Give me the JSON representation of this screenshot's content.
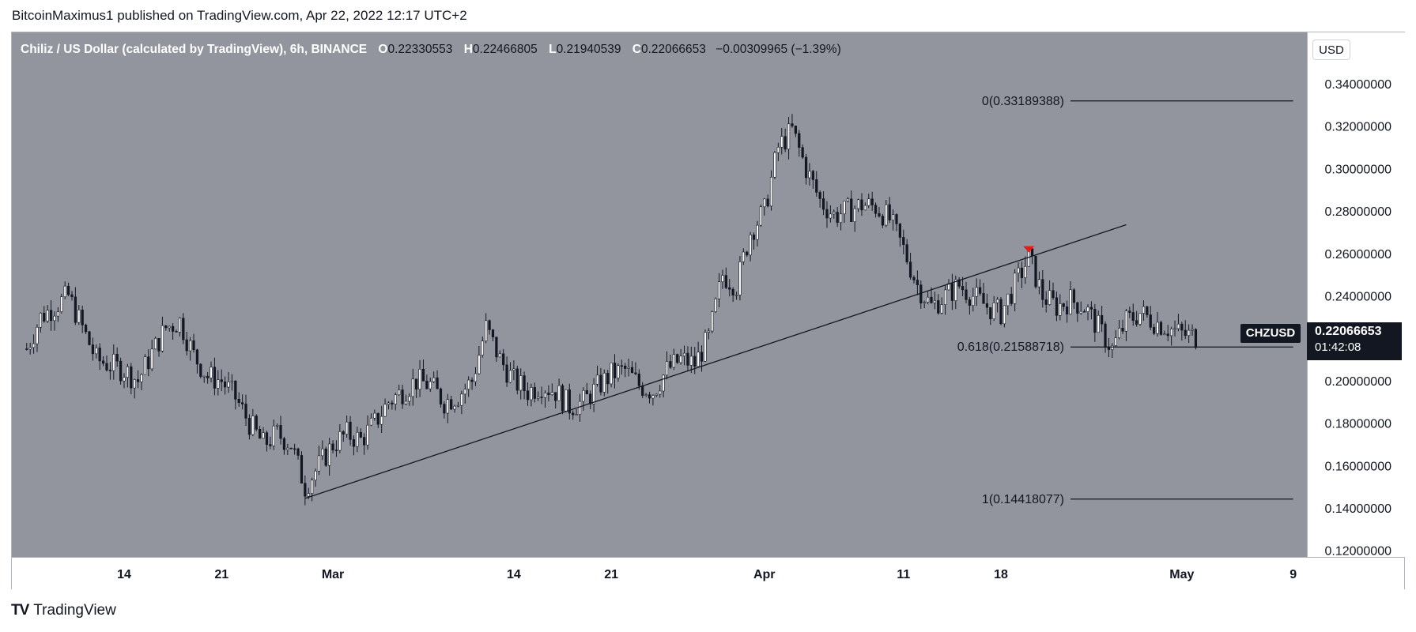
{
  "header": {
    "publisher": "BitcoinMaximus1 published on TradingView.com, Apr 22, 2022 12:17 UTC+2"
  },
  "legend": {
    "symbol": "Chiliz / US Dollar (calculated by TradingView), 6h, BINANCE",
    "o_label": "O",
    "o": "0.22330553",
    "h_label": "H",
    "h": "0.22466805",
    "l_label": "L",
    "l": "0.21940539",
    "c_label": "C",
    "c": "0.22066653",
    "change": "−0.00309965 (−1.39%)"
  },
  "axis": {
    "currency_button": "USD"
  },
  "ticker": {
    "symbol": "CHZUSD",
    "last_price": "0.22066653",
    "countdown": "01:42:08"
  },
  "footer": {
    "logo_mark": "TV",
    "brand": "TradingView"
  },
  "colors": {
    "plot_bg": "#93959e",
    "candle": "#131722",
    "trendline": "#131722",
    "marker": "#e31c1c"
  },
  "chart_data": {
    "type": "candlestick",
    "title": "Chiliz / US Dollar (calculated by TradingView), 6h, BINANCE",
    "ylim": [
      0.12,
      0.35
    ],
    "y_ticks": [
      "0.34000000",
      "0.32000000",
      "0.30000000",
      "0.28000000",
      "0.26000000",
      "0.24000000",
      "0.22000000",
      "0.20000000",
      "0.18000000",
      "0.16000000",
      "0.14000000",
      "0.12000000"
    ],
    "y_tick_values": [
      0.34,
      0.32,
      0.3,
      0.28,
      0.26,
      0.24,
      0.22,
      0.2,
      0.18,
      0.16,
      0.14,
      0.12
    ],
    "x_domain": [
      "2022-02-07",
      "2022-05-12"
    ],
    "x_ticks": [
      {
        "label": "14",
        "date": "2022-02-14"
      },
      {
        "label": "21",
        "date": "2022-02-21"
      },
      {
        "label": "Mar",
        "date": "2022-03-01"
      },
      {
        "label": "14",
        "date": "2022-03-14"
      },
      {
        "label": "21",
        "date": "2022-03-21"
      },
      {
        "label": "Apr",
        "date": "2022-04-01"
      },
      {
        "label": "11",
        "date": "2022-04-11"
      },
      {
        "label": "18",
        "date": "2022-04-18"
      },
      {
        "label": "May",
        "date": "2022-05-01"
      },
      {
        "label": "9",
        "date": "2022-05-09"
      }
    ],
    "price_path": [
      [
        "2022-02-07",
        0.215
      ],
      [
        "2022-02-08",
        0.23
      ],
      [
        "2022-02-09",
        0.235
      ],
      [
        "2022-02-10",
        0.24
      ],
      [
        "2022-02-11",
        0.225
      ],
      [
        "2022-02-12",
        0.21
      ],
      [
        "2022-02-14",
        0.205
      ],
      [
        "2022-02-15",
        0.2
      ],
      [
        "2022-02-16",
        0.213
      ],
      [
        "2022-02-17",
        0.225
      ],
      [
        "2022-02-18",
        0.228
      ],
      [
        "2022-02-19",
        0.212
      ],
      [
        "2022-02-20",
        0.202
      ],
      [
        "2022-02-21",
        0.2
      ],
      [
        "2022-02-22",
        0.192
      ],
      [
        "2022-02-23",
        0.18
      ],
      [
        "2022-02-24",
        0.17
      ],
      [
        "2022-02-25",
        0.175
      ],
      [
        "2022-02-26",
        0.17
      ],
      [
        "2022-02-27",
        0.15
      ],
      [
        "2022-02-28",
        0.16
      ],
      [
        "2022-03-01",
        0.17
      ],
      [
        "2022-03-02",
        0.175
      ],
      [
        "2022-03-03",
        0.172
      ],
      [
        "2022-03-04",
        0.18
      ],
      [
        "2022-03-05",
        0.19
      ],
      [
        "2022-03-06",
        0.195
      ],
      [
        "2022-03-07",
        0.2
      ],
      [
        "2022-03-08",
        0.198
      ],
      [
        "2022-03-09",
        0.19
      ],
      [
        "2022-03-10",
        0.193
      ],
      [
        "2022-03-11",
        0.2
      ],
      [
        "2022-03-12",
        0.225
      ],
      [
        "2022-03-13",
        0.21
      ],
      [
        "2022-03-14",
        0.2
      ],
      [
        "2022-03-15",
        0.195
      ],
      [
        "2022-03-16",
        0.198
      ],
      [
        "2022-03-17",
        0.195
      ],
      [
        "2022-03-18",
        0.188
      ],
      [
        "2022-03-19",
        0.19
      ],
      [
        "2022-03-20",
        0.197
      ],
      [
        "2022-03-21",
        0.203
      ],
      [
        "2022-03-22",
        0.205
      ],
      [
        "2022-03-23",
        0.198
      ],
      [
        "2022-03-24",
        0.195
      ],
      [
        "2022-03-25",
        0.205
      ],
      [
        "2022-03-26",
        0.21
      ],
      [
        "2022-03-27",
        0.208
      ],
      [
        "2022-03-28",
        0.22
      ],
      [
        "2022-03-29",
        0.25
      ],
      [
        "2022-03-30",
        0.245
      ],
      [
        "2022-03-31",
        0.27
      ],
      [
        "2022-04-01",
        0.28
      ],
      [
        "2022-04-02",
        0.31
      ],
      [
        "2022-04-03",
        0.318
      ],
      [
        "2022-04-04",
        0.3
      ],
      [
        "2022-04-05",
        0.285
      ],
      [
        "2022-04-06",
        0.278
      ],
      [
        "2022-04-07",
        0.28
      ],
      [
        "2022-04-08",
        0.283
      ],
      [
        "2022-04-09",
        0.282
      ],
      [
        "2022-04-10",
        0.276
      ],
      [
        "2022-04-11",
        0.262
      ],
      [
        "2022-04-12",
        0.245
      ],
      [
        "2022-04-13",
        0.235
      ],
      [
        "2022-04-14",
        0.24
      ],
      [
        "2022-04-15",
        0.245
      ],
      [
        "2022-04-16",
        0.24
      ],
      [
        "2022-04-17",
        0.235
      ],
      [
        "2022-04-18",
        0.232
      ],
      [
        "2022-04-19",
        0.245
      ],
      [
        "2022-04-20",
        0.258
      ],
      [
        "2022-04-21",
        0.24
      ],
      [
        "2022-04-22",
        0.235
      ],
      [
        "2022-04-23",
        0.238
      ],
      [
        "2022-04-24",
        0.235
      ],
      [
        "2022-04-25",
        0.225
      ],
      [
        "2022-04-26",
        0.215
      ],
      [
        "2022-04-27",
        0.228
      ],
      [
        "2022-04-28",
        0.232
      ],
      [
        "2022-04-29",
        0.228
      ],
      [
        "2022-04-30",
        0.225
      ],
      [
        "2022-05-01",
        0.222
      ],
      [
        "2022-05-02",
        0.2207
      ]
    ],
    "ascending_trendline": {
      "start": [
        "2022-02-27",
        0.1445
      ],
      "end": [
        "2022-04-27",
        0.2735
      ]
    },
    "breakdown_marker": {
      "date": "2022-04-20",
      "value": 0.2612
    },
    "fib_levels": [
      {
        "label": "0(0.33189388)",
        "value": 0.33189388
      },
      {
        "label": "0.618(0.21588718)",
        "value": 0.21588718
      },
      {
        "label": "1(0.14418077)",
        "value": 0.14418077
      }
    ],
    "fib_range": [
      "2022-04-23",
      "2022-05-09"
    ]
  }
}
